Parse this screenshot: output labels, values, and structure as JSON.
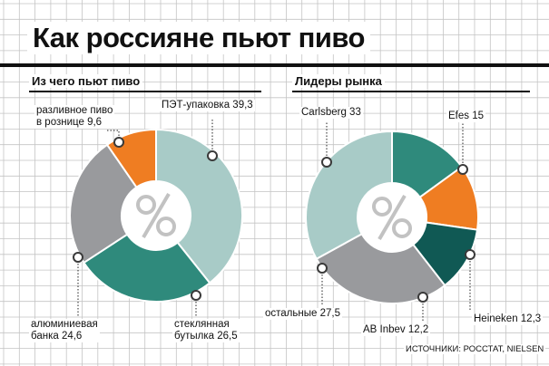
{
  "title": "Как россияне пьют пиво",
  "source": "ИСТОЧНИКИ: РОССТАТ, NIELSEN",
  "colors": {
    "teal": "#2f8a7c",
    "light_teal": "#a8cbc7",
    "orange": "#ef7d22",
    "gray": "#999a9d",
    "dark_teal": "#105954",
    "grid": "#c4c4c4"
  },
  "center_icon": "percent-sign",
  "chart_data": [
    {
      "type": "pie",
      "title": "Из чего пьют пиво",
      "slices": [
        {
          "label": "ПЭТ-упаковка",
          "value": 39.3,
          "color": "#a8cbc7",
          "text": "ПЭТ-упаковка 39,3"
        },
        {
          "label": "стеклянная бутылка",
          "value": 26.5,
          "color": "#2f8a7c",
          "text": [
            "стеклянная",
            "бутылка 26,5"
          ]
        },
        {
          "label": "алюминиевая банка",
          "value": 24.6,
          "color": "#999a9d",
          "text": [
            "алюминиевая",
            "банка 24,6"
          ]
        },
        {
          "label": "разливное пиво в рознице",
          "value": 9.6,
          "color": "#ef7d22",
          "text": [
            "разливное пиво",
            "в рознице 9,6"
          ]
        }
      ]
    },
    {
      "type": "pie",
      "title": "Лидеры рынка",
      "slices": [
        {
          "label": "Efes",
          "value": 15,
          "color": "#2f8a7c",
          "text": "Efes 15"
        },
        {
          "label": "Heineken",
          "value": 12.3,
          "color": "#ef7d22",
          "text": "Heineken 12,3"
        },
        {
          "label": "AB Inbev",
          "value": 12.2,
          "color": "#105954",
          "text": "AB Inbev 12,2"
        },
        {
          "label": "остальные",
          "value": 27.5,
          "color": "#999a9d",
          "text": "остальные 27,5"
        },
        {
          "label": "Carlsberg",
          "value": 33,
          "color": "#a8cbc7",
          "text": "Carlsberg 33"
        }
      ]
    }
  ]
}
